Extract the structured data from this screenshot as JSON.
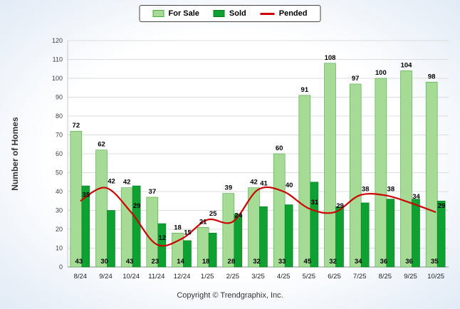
{
  "legend": {
    "items": [
      {
        "label": "For Sale",
        "swatch": "bar",
        "color": "#A5DB95",
        "border": "#4EA647"
      },
      {
        "label": "Sold",
        "swatch": "bar",
        "color": "#0CA131",
        "border": "#0B7A24"
      },
      {
        "label": "Pended",
        "swatch": "line",
        "color": "#CC0000"
      }
    ]
  },
  "y_axis_title": "Number of Homes",
  "footer": {
    "copyright": "Copyright © Trendgraphix, Inc."
  },
  "chart_data": {
    "type": "bar",
    "categories": [
      "8/24",
      "9/24",
      "10/24",
      "11/24",
      "12/24",
      "1/25",
      "2/25",
      "3/25",
      "4/25",
      "5/25",
      "6/25",
      "7/25",
      "8/25",
      "9/25",
      "10/25"
    ],
    "series": [
      {
        "name": "For Sale",
        "type": "bar",
        "color": "#A5DB95",
        "border": "#4EA647",
        "values": [
          72,
          62,
          42,
          37,
          18,
          21,
          39,
          42,
          60,
          91,
          108,
          97,
          100,
          104,
          98
        ]
      },
      {
        "name": "Sold",
        "type": "bar",
        "color": "#0CA131",
        "border": "#0B7A24",
        "values": [
          43,
          30,
          43,
          23,
          14,
          18,
          28,
          32,
          33,
          45,
          32,
          34,
          36,
          36,
          35
        ]
      },
      {
        "name": "Pended",
        "type": "line",
        "color": "#CC0000",
        "values": [
          35,
          42,
          29,
          12,
          15,
          25,
          24,
          41,
          40,
          31,
          29,
          38,
          38,
          34,
          29
        ]
      }
    ],
    "title": "",
    "xlabel": "",
    "ylabel": "Number of Homes",
    "ylim": [
      0,
      120
    ],
    "ytick_step": 10,
    "grid": true,
    "legend_position": "top"
  }
}
